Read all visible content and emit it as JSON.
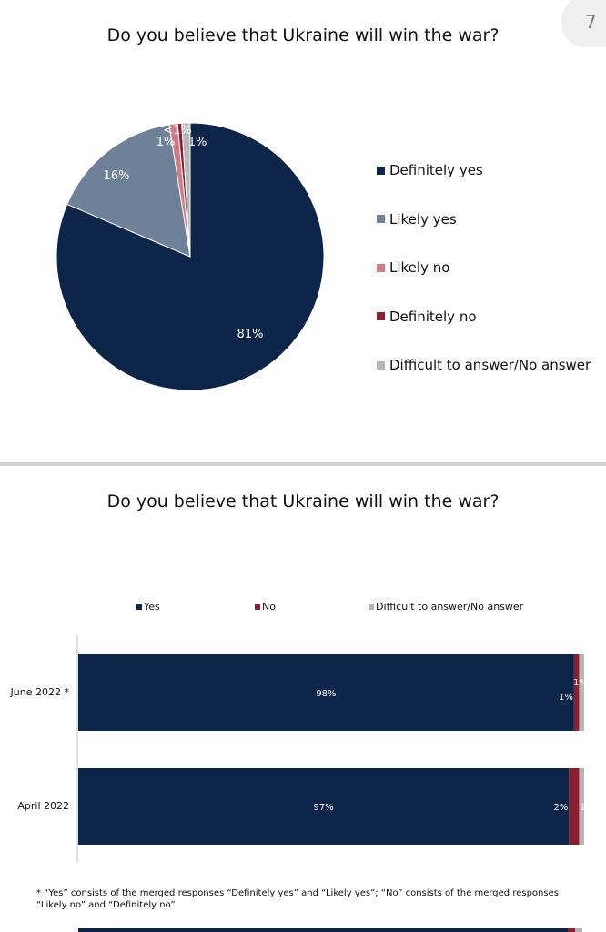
{
  "page_number": "7",
  "colors": {
    "definitely_yes": "#0d2549",
    "likely_yes": "#6e8198",
    "likely_no": "#d07c84",
    "definitely_no": "#8c1f32",
    "difficult": "#b5b5b5"
  },
  "chart_data": [
    {
      "type": "pie",
      "title": "Do you believe that Ukraine will win the war?",
      "slices": [
        {
          "name": "Definitely yes",
          "value": 81,
          "label": "81%",
          "color": "#0d2549"
        },
        {
          "name": "Likely yes",
          "value": 16,
          "label": "16%",
          "color": "#6e8198"
        },
        {
          "name": "Likely no",
          "value": 1,
          "label": "1%",
          "color": "#d07c84"
        },
        {
          "name": "Definitely no",
          "value": 0.5,
          "label": "<1%",
          "color": "#8c1f32"
        },
        {
          "name": "Difficult to answer/No answer",
          "value": 1,
          "label": "1%",
          "color": "#b5b5b5"
        }
      ],
      "legend_position": "right"
    },
    {
      "type": "bar",
      "orientation": "horizontal-stacked",
      "title": "Do you believe that Ukraine will win the war?",
      "categories": [
        "June 2022 *",
        "April 2022"
      ],
      "series": [
        {
          "name": "Yes",
          "values": [
            98,
            97
          ],
          "labels": [
            "98%",
            "97%"
          ],
          "color": "#0d2549"
        },
        {
          "name": "No",
          "values": [
            1,
            2
          ],
          "labels": [
            "1%",
            "2%"
          ],
          "color": "#8c1f32"
        },
        {
          "name": "Difficult to answer/No answer",
          "values": [
            1,
            1
          ],
          "labels": [
            "1%",
            "1%"
          ],
          "color": "#b5b5b5"
        }
      ],
      "xlim": [
        0,
        100
      ],
      "legend_position": "top",
      "footnote": "* “Yes” consists of the merged responses “Definitely yes” and “Likely yes”; “No” consists of the merged responses “Likely no” and “Definitely no”"
    }
  ]
}
